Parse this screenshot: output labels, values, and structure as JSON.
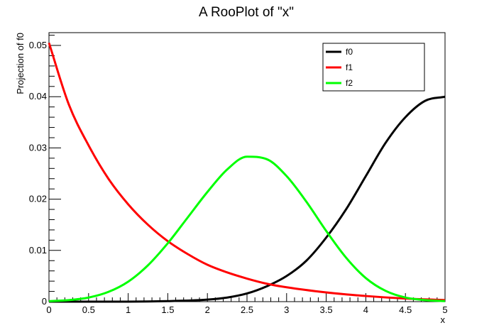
{
  "chart_data": {
    "type": "line",
    "title": "A RooPlot of \"x\"",
    "xlabel": "x",
    "ylabel": "Projection of f0",
    "xlim": [
      0,
      5
    ],
    "ylim": [
      0,
      0.0525
    ],
    "xticks": [
      0,
      0.5,
      1,
      1.5,
      2,
      2.5,
      3,
      3.5,
      4,
      4.5,
      5
    ],
    "xtick_labels": [
      "0",
      "0.5",
      "1",
      "1.5",
      "2",
      "2.5",
      "3",
      "3.5",
      "4",
      "4.5",
      "5"
    ],
    "yticks": [
      0,
      0.01,
      0.02,
      0.03,
      0.04,
      0.05
    ],
    "ytick_labels": [
      "0",
      "0.01",
      "0.02",
      "0.03",
      "0.04",
      "0.05"
    ],
    "grid": false,
    "legend_position": "top-right",
    "series": [
      {
        "name": "f0",
        "color": "#000000",
        "x": [
          0,
          0.5,
          1,
          1.5,
          2,
          2.25,
          2.5,
          2.75,
          3,
          3.25,
          3.5,
          3.75,
          4,
          4.25,
          4.5,
          4.75,
          5
        ],
        "y": [
          0,
          0,
          0,
          0.0001,
          0.0004,
          0.0008,
          0.0016,
          0.003,
          0.005,
          0.008,
          0.0125,
          0.018,
          0.0245,
          0.031,
          0.036,
          0.0392,
          0.04
        ]
      },
      {
        "name": "f1",
        "color": "#ff0000",
        "x": [
          0,
          0.25,
          0.5,
          0.75,
          1,
          1.25,
          1.5,
          1.75,
          2,
          2.25,
          2.5,
          2.75,
          3,
          3.5,
          4,
          4.5,
          5
        ],
        "y": [
          0.0505,
          0.0385,
          0.0305,
          0.024,
          0.019,
          0.015,
          0.0118,
          0.0093,
          0.0072,
          0.0057,
          0.0045,
          0.0035,
          0.0028,
          0.0018,
          0.0011,
          0.0006,
          0.0003
        ]
      },
      {
        "name": "f2",
        "color": "#00ff00",
        "x": [
          0,
          0.25,
          0.5,
          0.75,
          1,
          1.25,
          1.5,
          1.75,
          2,
          2.25,
          2.5,
          2.75,
          3,
          3.25,
          3.5,
          3.75,
          4,
          4.25,
          4.5,
          4.75,
          5
        ],
        "y": [
          0.0001,
          0.0003,
          0.0008,
          0.0019,
          0.0039,
          0.0071,
          0.0114,
          0.0164,
          0.0214,
          0.0258,
          0.0283,
          0.0278,
          0.0245,
          0.0195,
          0.0138,
          0.0086,
          0.0046,
          0.0021,
          0.0008,
          0.0003,
          0.0001
        ]
      }
    ]
  }
}
